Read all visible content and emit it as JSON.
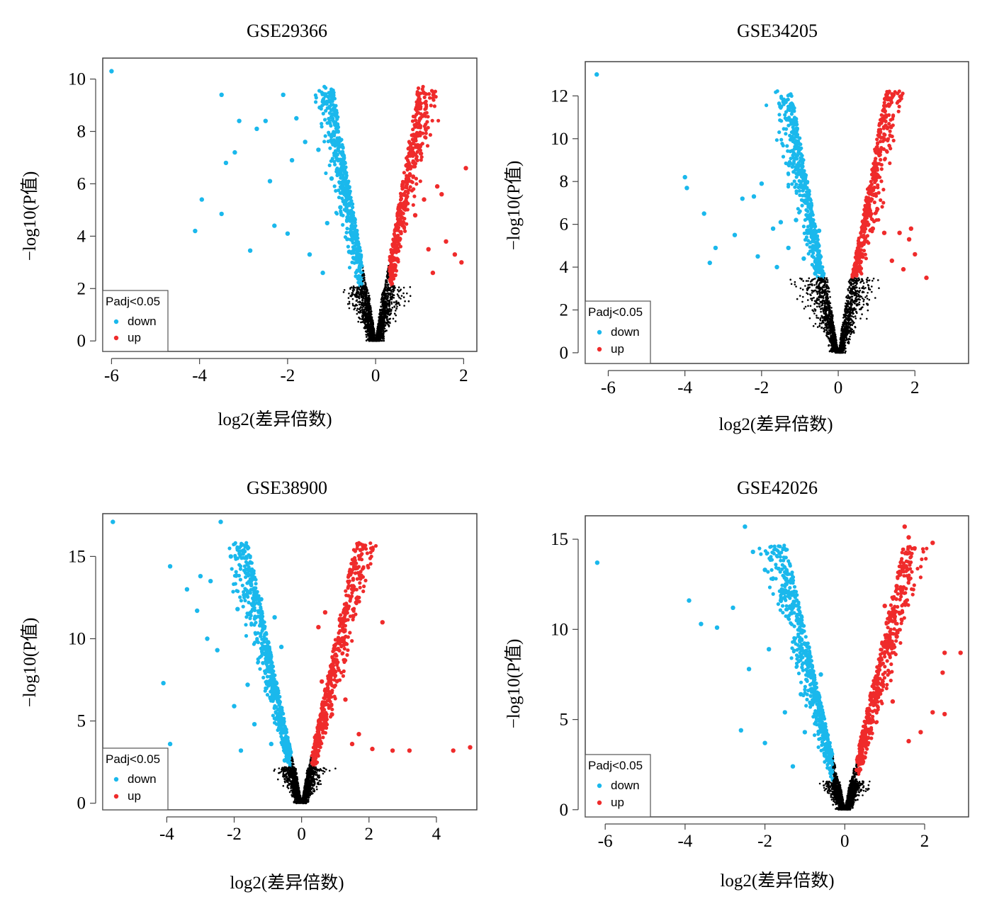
{
  "colors": {
    "down": "#1ab8ec",
    "up": "#ef2b2b",
    "ns": "#000000"
  },
  "chart_data": [
    {
      "type": "scatter",
      "title": "GSE29366",
      "xlabel": "log2(差异倍数)",
      "ylabel": "−log10(P值)",
      "xlim": [
        -6.2,
        2.3
      ],
      "ylim": [
        -0.4,
        10.8
      ],
      "xticks": [
        -6,
        -4,
        -2,
        0,
        2
      ],
      "yticks": [
        0,
        2,
        4,
        6,
        8,
        10
      ],
      "threshold": 2.1,
      "legend": {
        "title": "Padj<0.05",
        "entries": [
          "down",
          "up"
        ],
        "position": "bottom-left"
      },
      "series": [
        {
          "name": "down",
          "color_key": "down",
          "points": [
            [
              -6.0,
              10.3
            ],
            [
              -3.5,
              9.4
            ],
            [
              -2.1,
              9.4
            ],
            [
              -1.8,
              8.5
            ],
            [
              -2.5,
              8.4
            ],
            [
              -3.1,
              8.4
            ],
            [
              -2.7,
              8.1
            ],
            [
              -3.2,
              7.2
            ],
            [
              -3.4,
              6.8
            ],
            [
              -3.95,
              5.4
            ],
            [
              -3.5,
              4.85
            ],
            [
              -4.1,
              4.2
            ],
            [
              -2.85,
              3.45
            ],
            [
              -2.3,
              4.4
            ],
            [
              -2.0,
              4.1
            ],
            [
              -1.5,
              3.3
            ],
            [
              -1.2,
              2.6
            ],
            [
              -1.0,
              6.2
            ],
            [
              -0.8,
              5.1
            ],
            [
              -1.9,
              6.9
            ],
            [
              -1.6,
              7.6
            ],
            [
              -1.3,
              7.3
            ],
            [
              -1.1,
              4.5
            ],
            [
              -0.6,
              3.4
            ],
            [
              -2.4,
              6.1
            ]
          ]
        },
        {
          "name": "up",
          "color_key": "up",
          "points": [
            [
              2.05,
              6.6
            ],
            [
              0.7,
              6.7
            ],
            [
              1.4,
              5.9
            ],
            [
              1.5,
              5.6
            ],
            [
              1.6,
              3.8
            ],
            [
              1.8,
              3.3
            ],
            [
              1.95,
              3.0
            ],
            [
              1.3,
              2.6
            ],
            [
              0.9,
              4.8
            ],
            [
              1.1,
              5.4
            ],
            [
              0.55,
              3.9
            ],
            [
              0.5,
              3.1
            ],
            [
              1.2,
              3.5
            ]
          ]
        }
      ],
      "not_significant_note": "dense black points below threshold"
    },
    {
      "type": "scatter",
      "title": "GSE34205",
      "xlabel": "log2(差异倍数)",
      "ylabel": "−log10(P值)",
      "xlim": [
        -6.6,
        3.4
      ],
      "ylim": [
        -0.5,
        13.6
      ],
      "xticks": [
        -6,
        -4,
        -2,
        0,
        2
      ],
      "yticks": [
        0,
        2,
        4,
        6,
        8,
        10,
        12
      ],
      "threshold": 3.5,
      "legend": {
        "title": "Padj<0.05",
        "entries": [
          "down",
          "up"
        ],
        "position": "bottom-left"
      },
      "series": [
        {
          "name": "down",
          "color_key": "down",
          "points": [
            [
              -6.3,
              13.0
            ],
            [
              -4.0,
              8.2
            ],
            [
              -3.95,
              7.7
            ],
            [
              -3.5,
              6.5
            ],
            [
              -2.7,
              5.5
            ],
            [
              -3.2,
              4.9
            ],
            [
              -3.35,
              4.2
            ],
            [
              -2.0,
              7.9
            ],
            [
              -2.2,
              7.3
            ],
            [
              -2.5,
              7.2
            ],
            [
              -1.7,
              5.8
            ],
            [
              -1.5,
              6.1
            ],
            [
              -1.1,
              6.2
            ],
            [
              -0.8,
              5.6
            ],
            [
              -0.5,
              5.7
            ],
            [
              -1.3,
              4.9
            ],
            [
              -0.9,
              4.4
            ],
            [
              -2.1,
              4.5
            ],
            [
              -1.6,
              4.0
            ],
            [
              -0.6,
              3.7
            ]
          ]
        },
        {
          "name": "up",
          "color_key": "up",
          "points": [
            [
              0.9,
              5.8
            ],
            [
              1.2,
              5.6
            ],
            [
              1.6,
              5.6
            ],
            [
              1.9,
              5.8
            ],
            [
              2.0,
              4.6
            ],
            [
              1.85,
              5.3
            ],
            [
              2.3,
              3.5
            ],
            [
              0.5,
              4.6
            ],
            [
              0.7,
              5.2
            ],
            [
              1.4,
              4.3
            ],
            [
              1.7,
              3.9
            ],
            [
              0.4,
              3.7
            ]
          ]
        }
      ],
      "not_significant_note": "dense black points below threshold"
    },
    {
      "type": "scatter",
      "title": "GSE38900",
      "xlabel": "log2(差异倍数)",
      "ylabel": "−log10(P值)",
      "xlim": [
        -5.9,
        5.2
      ],
      "ylim": [
        -0.4,
        17.6
      ],
      "xticks": [
        -4,
        -2,
        0,
        2,
        4
      ],
      "yticks": [
        0,
        5,
        10,
        15
      ],
      "threshold": 2.2,
      "legend": {
        "title": "Padj<0.05",
        "entries": [
          "down",
          "up"
        ],
        "position": "bottom-left"
      },
      "series": [
        {
          "name": "down",
          "color_key": "down",
          "points": [
            [
              -5.6,
              17.1
            ],
            [
              -2.4,
              17.1
            ],
            [
              -3.9,
              14.4
            ],
            [
              -2.1,
              15.0
            ],
            [
              -2.7,
              13.5
            ],
            [
              -3.4,
              13.0
            ],
            [
              -3.0,
              13.8
            ],
            [
              -1.5,
              13.3
            ],
            [
              -4.1,
              7.3
            ],
            [
              -3.9,
              3.6
            ],
            [
              -3.1,
              11.7
            ],
            [
              -2.8,
              10.0
            ],
            [
              -2.5,
              9.3
            ],
            [
              -1.9,
              11.8
            ],
            [
              -1.2,
              12.4
            ],
            [
              -0.8,
              11.3
            ],
            [
              -0.6,
              9.5
            ],
            [
              -1.0,
              8.6
            ],
            [
              -1.6,
              7.2
            ],
            [
              -2.0,
              5.9
            ],
            [
              -1.4,
              4.8
            ],
            [
              -0.9,
              3.6
            ],
            [
              -1.8,
              3.2
            ],
            [
              -0.5,
              2.6
            ]
          ]
        },
        {
          "name": "up",
          "color_key": "up",
          "points": [
            [
              0.7,
              11.6
            ],
            [
              2.4,
              11.0
            ],
            [
              0.5,
              10.7
            ],
            [
              1.0,
              8.0
            ],
            [
              1.3,
              6.3
            ],
            [
              1.7,
              4.2
            ],
            [
              2.1,
              3.3
            ],
            [
              2.7,
              3.2
            ],
            [
              3.2,
              3.2
            ],
            [
              4.5,
              3.2
            ],
            [
              5.0,
              3.4
            ],
            [
              0.9,
              5.4
            ],
            [
              0.4,
              4.0
            ],
            [
              1.5,
              3.6
            ],
            [
              0.6,
              7.4
            ]
          ]
        }
      ],
      "not_significant_note": "dense black points below threshold"
    },
    {
      "type": "scatter",
      "title": "GSE42026",
      "xlabel": "log2(差异倍数)",
      "ylabel": "−log10(P值)",
      "xlim": [
        -6.5,
        3.1
      ],
      "ylim": [
        -0.4,
        16.3
      ],
      "xticks": [
        -6,
        -4,
        -2,
        0,
        2
      ],
      "yticks": [
        0,
        5,
        10,
        15
      ],
      "threshold": 1.6,
      "legend": {
        "title": "Padj<0.05",
        "entries": [
          "down",
          "up"
        ],
        "position": "bottom-left"
      },
      "series": [
        {
          "name": "down",
          "color_key": "down",
          "points": [
            [
              -6.2,
              13.7
            ],
            [
              -2.5,
              15.7
            ],
            [
              -2.3,
              14.3
            ],
            [
              -2.0,
              13.3
            ],
            [
              -3.9,
              11.6
            ],
            [
              -3.6,
              10.3
            ],
            [
              -3.2,
              10.1
            ],
            [
              -2.8,
              11.2
            ],
            [
              -1.6,
              11.6
            ],
            [
              -1.2,
              10.5
            ],
            [
              -0.9,
              9.0
            ],
            [
              -0.6,
              7.5
            ],
            [
              -1.1,
              6.4
            ],
            [
              -2.4,
              7.8
            ],
            [
              -1.9,
              8.9
            ],
            [
              -1.5,
              5.4
            ],
            [
              -1.0,
              4.3
            ],
            [
              -2.0,
              3.7
            ],
            [
              -2.6,
              4.4
            ],
            [
              -0.5,
              3.0
            ],
            [
              -1.3,
              2.4
            ]
          ]
        },
        {
          "name": "up",
          "color_key": "up",
          "points": [
            [
              1.5,
              15.7
            ],
            [
              1.6,
              15.1
            ],
            [
              2.2,
              14.8
            ],
            [
              1.4,
              13.5
            ],
            [
              1.3,
              12.4
            ],
            [
              1.0,
              11.3
            ],
            [
              2.9,
              8.7
            ],
            [
              2.5,
              8.7
            ],
            [
              2.45,
              7.6
            ],
            [
              2.5,
              5.3
            ],
            [
              2.2,
              5.4
            ],
            [
              1.9,
              4.3
            ],
            [
              1.6,
              3.8
            ],
            [
              1.2,
              6.0
            ],
            [
              0.9,
              8.4
            ],
            [
              0.7,
              4.9
            ],
            [
              0.5,
              2.9
            ],
            [
              1.3,
              9.6
            ],
            [
              0.3,
              2.2
            ]
          ]
        }
      ],
      "not_significant_note": "dense black points below threshold"
    }
  ]
}
